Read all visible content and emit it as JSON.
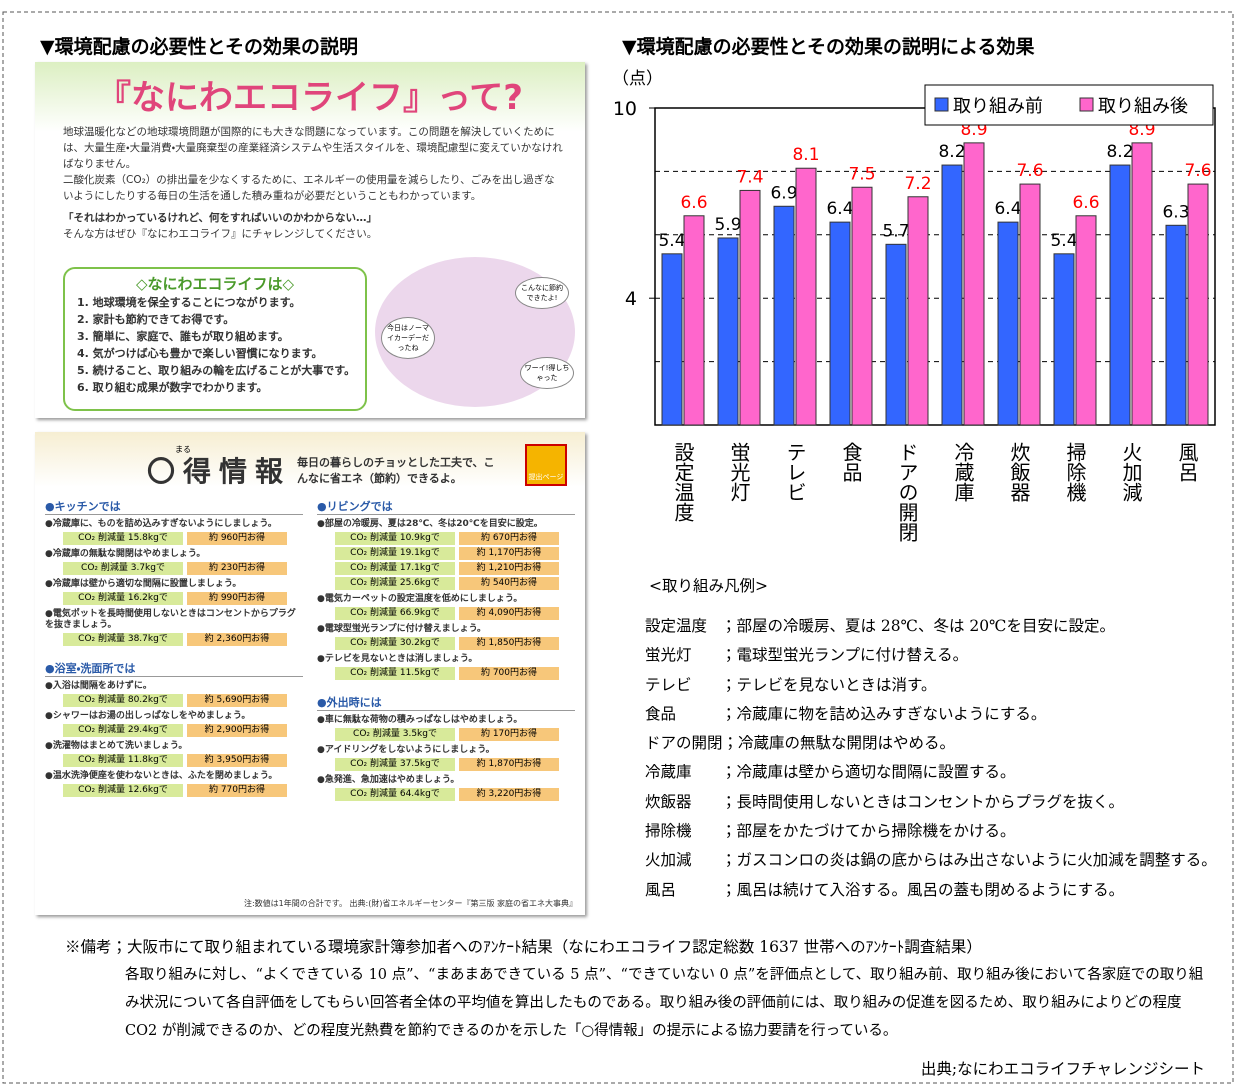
{
  "headings": {
    "left": "▼環境配慮の必要性とその効果の説明",
    "right": "▼環境配慮の必要性とその効果の説明による効果"
  },
  "intro": {
    "title": "『なにわエコライフ』って?",
    "paragraphs": [
      "地球温暖化などの地球環境問題が国際的にも大きな問題になっています。この問題を解決していくためには、大量生産・大量消費・大量廃棄型の産業経済システムや生活スタイルを、環境配慮型に変えていかなければなりません。",
      "二酸化炭素（CO₂）の排出量を少なくするために、エネルギーの使用量を減らしたり、ごみを出し過ぎないようにしたりする毎日の生活を通した積み重ねが必要だということもわかっています。"
    ],
    "quote": "「それはわかっているけれど、何をすればいいのかわからない…」",
    "invite": "そんな方はぜひ『なにわエコライフ』にチャレンジしてください。",
    "box_title": "◇なにわエコライフは◇",
    "points": [
      "1. 地球環境を保全することにつながります。",
      "2. 家計も節約できてお得です。",
      "3. 簡単に、家庭で、誰もが取り組めます。",
      "4. 気がつけば心も豊かで楽しい習慣になります。",
      "5. 続けること、取り組みの輪を広げることが大事です。",
      "6. 取り組む成果が数字でわかります。"
    ],
    "bubbles": [
      "こんなに節約できたよ!",
      "今日はノーマイカーデーだったね",
      "ワーイ!得しちゃった"
    ]
  },
  "info": {
    "ruby": "まる",
    "title": "〇得情報",
    "tagline": "毎日の暮らしのチョッとした工夫で、こんなに省エネ（節約）できるよ。",
    "badge": "提出ページ",
    "columns": [
      [
        {
          "heading": "●キッチンでは",
          "items": [
            {
              "text": "●冷蔵庫に、ものを詰め込みすぎないようにしましょう。",
              "rows": [
                [
                  "CO₂ 削減量 15.8kgで",
                  "約 960円お得"
                ]
              ]
            },
            {
              "text": "●冷蔵庫の無駄な開閉はやめましょう。",
              "rows": [
                [
                  "CO₂ 削減量 3.7kgで",
                  "約 230円お得"
                ]
              ]
            },
            {
              "text": "●冷蔵庫は壁から適切な間隔に設置しましょう。",
              "rows": [
                [
                  "CO₂ 削減量 16.2kgで",
                  "約 990円お得"
                ]
              ]
            },
            {
              "text": "●電気ポットを長時間使用しないときはコンセントからプラグを抜きましょう。",
              "rows": [
                [
                  "CO₂ 削減量 38.7kgで",
                  "約 2,360円お得"
                ]
              ]
            }
          ]
        },
        {
          "heading": "●浴室・洗面所では",
          "items": [
            {
              "text": "●入浴は間隔をあけずに。",
              "rows": [
                [
                  "CO₂ 削減量 80.2kgで",
                  "約 5,690円お得"
                ]
              ]
            },
            {
              "text": "●シャワーはお湯の出しっぱなしをやめましょう。",
              "rows": [
                [
                  "CO₂ 削減量 29.4kgで",
                  "約 2,900円お得"
                ]
              ]
            },
            {
              "text": "●洗濯物はまとめて洗いましょう。",
              "rows": [
                [
                  "CO₂ 削減量 11.8kgで",
                  "約 3,950円お得"
                ]
              ]
            },
            {
              "text": "●温水洗浄便座を使わないときは、ふたを閉めましょう。",
              "rows": [
                [
                  "CO₂ 削減量 12.6kgで",
                  "約 770円お得"
                ]
              ]
            }
          ]
        }
      ],
      [
        {
          "heading": "●リビングでは",
          "items": [
            {
              "text": "●部屋の冷暖房、夏は28℃、冬は20℃を目安に設定。",
              "rows": [
                [
                  "CO₂ 削減量 10.9kgで",
                  "約 670円お得"
                ],
                [
                  "CO₂ 削減量 19.1kgで",
                  "約 1,170円お得"
                ],
                [
                  "CO₂ 削減量 17.1kgで",
                  "約 1,210円お得"
                ],
                [
                  "CO₂ 削減量 25.6kgで",
                  "約 540円お得"
                ]
              ]
            },
            {
              "text": "●電気カーペットの設定温度を低めにしましょう。",
              "rows": [
                [
                  "CO₂ 削減量 66.9kgで",
                  "約 4,090円お得"
                ]
              ]
            },
            {
              "text": "●電球型蛍光ランプに付け替えましょう。",
              "rows": [
                [
                  "CO₂ 削減量 30.2kgで",
                  "約 1,850円お得"
                ]
              ]
            },
            {
              "text": "●テレビを見ないときは消しましょう。",
              "rows": [
                [
                  "CO₂ 削減量 11.5kgで",
                  "約 700円お得"
                ]
              ]
            }
          ]
        },
        {
          "heading": "●外出時には",
          "items": [
            {
              "text": "●車に無駄な荷物の積みっぱなしはやめましょう。",
              "rows": [
                [
                  "CO₂ 削減量 3.5kgで",
                  "約 170円お得"
                ]
              ]
            },
            {
              "text": "●アイドリングをしないようにしましょう。",
              "rows": [
                [
                  "CO₂ 削減量 37.5kgで",
                  "約 1,870円お得"
                ]
              ]
            },
            {
              "text": "●急発進、急加速はやめましょう。",
              "rows": [
                [
                  "CO₂ 削減量 64.4kgで",
                  "約 3,220円お得"
                ]
              ]
            }
          ]
        }
      ]
    ],
    "note": "注:数値は1年間の合計です。 出典:(財)省エネルギーセンター『第三版 家庭の省エネ大事典』"
  },
  "chart_data": {
    "type": "bar",
    "y_label": "（点）",
    "categories": [
      "設定温度",
      "蛍光灯",
      "テレビ",
      "食品",
      "ドアの開閉",
      "冷蔵庫",
      "炊飯器",
      "掃除機",
      "火加減",
      "風呂"
    ],
    "series": [
      {
        "name": "取り組み前",
        "color": "#3366ff",
        "label_color": "#000000",
        "values": [
          5.4,
          5.9,
          6.9,
          6.4,
          5.7,
          8.2,
          6.4,
          5.4,
          8.2,
          6.3
        ]
      },
      {
        "name": "取り組み後",
        "color": "#ff66cc",
        "label_color": "#ff0000",
        "values": [
          6.6,
          7.4,
          8.1,
          7.5,
          7.2,
          8.9,
          7.6,
          6.6,
          8.9,
          7.6
        ]
      }
    ],
    "ylim": [
      0,
      10
    ],
    "yticks": [
      4,
      10
    ],
    "grid_lines": [
      2,
      4,
      6,
      8
    ],
    "legend": "top-right"
  },
  "legend_notes": {
    "title": "<取り組み凡例>",
    "rows": [
      [
        "設定温度",
        "；部屋の冷暖房、夏は 28℃、冬は 20℃を目安に設定。"
      ],
      [
        "蛍光灯",
        "；電球型蛍光ランプに付け替える。"
      ],
      [
        "テレビ",
        "；テレビを見ないときは消す。"
      ],
      [
        "食品",
        "；冷蔵庫に物を詰め込みすぎないようにする。"
      ],
      [
        "ドアの開閉",
        "；冷蔵庫の無駄な開閉はやめる。"
      ],
      [
        "冷蔵庫",
        "；冷蔵庫は壁から適切な間隔に設置する。"
      ],
      [
        "炊飯器",
        "；長時間使用しないときはコンセントからプラグを抜く。"
      ],
      [
        "掃除機",
        "；部屋をかたづけてから掃除機をかける。"
      ],
      [
        "火加減",
        "；ガスコンロの炎は鍋の底からはみ出さないように火加減を調整する。"
      ],
      [
        "風呂",
        "；風呂は続けて入浴する。風呂の蓋も閉めるようにする。"
      ]
    ]
  },
  "remarks": {
    "lead": "※備考；大阪市にて取り組まれている環境家計簿参加者へのｱﾝｹｰﾄ結果（なにわエコライフ認定総数 1637 世帯へのｱﾝｹｰﾄ調査結果）",
    "body": "各取り組みに対し、“よくできている 10 点”、“まあまあできている 5 点”、“できていない 0 点”を評価点として、取り組み前、取り組み後において各家庭での取り組み状況について各自評価をしてもらい回答者全体の平均値を算出したものである。取り組み後の評価前には、取り組みの促進を図るため、取り組みによりどの程度 CO2 が削減できるのか、どの程度光熱費を節約できるのかを示した「○得情報」の提示による協力要請を行っている。",
    "source": "出典;なにわエコライフチャレンジシート"
  }
}
